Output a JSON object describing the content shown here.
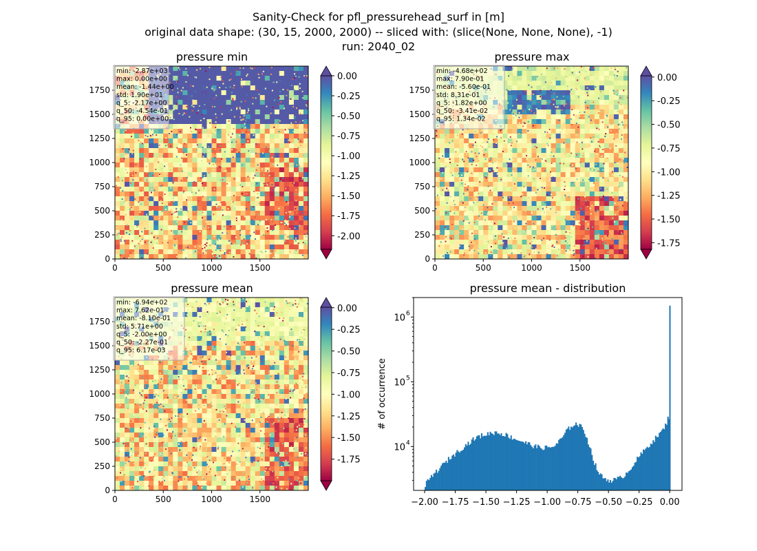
{
  "suptitle": {
    "line1": "Sanity-Check for pfl_pressurehead_surf in [m]",
    "line2": "original data shape: (30, 15, 2000, 2000) -- sliced with: (slice(None, None, None), -1)",
    "line3": "run: 2040_02"
  },
  "colormap": [
    "#9e0142",
    "#d53e4f",
    "#f46d43",
    "#fdae61",
    "#fee08b",
    "#ffffbf",
    "#e6f598",
    "#abdda4",
    "#66c2a5",
    "#3288bd",
    "#5e4fa2"
  ],
  "chart_data": [
    {
      "type": "heatmap",
      "title": "pressure min",
      "xticks": [
        0,
        500,
        1000,
        1500
      ],
      "yticks": [
        0,
        250,
        500,
        750,
        1000,
        1250,
        1500,
        1750
      ],
      "xlim": [
        0,
        2000
      ],
      "ylim": [
        0,
        2000
      ],
      "colorbar": {
        "ticks": [
          "0.00",
          "-0.25",
          "-0.50",
          "-0.75",
          "-1.00",
          "-1.25",
          "-1.50",
          "-1.75",
          "-2.00"
        ],
        "range": [
          -2.17,
          0.0
        ],
        "extend": "both"
      },
      "stats": [
        "min: -2.87e+03",
        "max: 0.00e+00",
        "mean: -1.44e+00",
        "std: 1.90e+01",
        "q_5: -2.17e+00",
        "q_50: -4.54e-01",
        "q_95: 0.00e+00"
      ]
    },
    {
      "type": "heatmap",
      "title": "pressure max",
      "xticks": [
        0,
        500,
        1000,
        1500
      ],
      "yticks": [
        0,
        250,
        500,
        750,
        1000,
        1250,
        1500,
        1750
      ],
      "xlim": [
        0,
        2000
      ],
      "ylim": [
        0,
        2000
      ],
      "colorbar": {
        "ticks": [
          "0.00",
          "-0.25",
          "-0.50",
          "-0.75",
          "-1.00",
          "-1.25",
          "-1.50",
          "-1.75"
        ],
        "range": [
          -1.82,
          0.0134
        ],
        "extend": "both"
      },
      "stats": [
        "min: -4.68e+02",
        "max: 7.90e-01",
        "mean: -5.60e-01",
        "std: 8.31e-01",
        "q_5: -1.82e+00",
        "q_50: -3.41e-02",
        "q_95: 1.34e-02"
      ]
    },
    {
      "type": "heatmap",
      "title": "pressure mean",
      "xticks": [
        0,
        500,
        1000,
        1500
      ],
      "yticks": [
        0,
        250,
        500,
        750,
        1000,
        1250,
        1500,
        1750
      ],
      "xlim": [
        0,
        2000
      ],
      "ylim": [
        0,
        2000
      ],
      "colorbar": {
        "ticks": [
          "0.00",
          "-0.25",
          "-0.50",
          "-0.75",
          "-1.00",
          "-1.25",
          "-1.50",
          "-1.75"
        ],
        "range": [
          -2.0,
          0.00617
        ],
        "extend": "both"
      },
      "stats": [
        "min: -6.94e+02",
        "max: 7.62e-01",
        "mean: -8.10e-01",
        "std: 5.71e+00",
        "q_5: -2.00e+00",
        "q_50: -2.27e-01",
        "q_95: 6.17e-03"
      ]
    },
    {
      "type": "bar",
      "title": "pressure mean - distribution",
      "ylabel": "# of occurrence",
      "xlabel": "",
      "xlim": [
        -2.09,
        0.1
      ],
      "ylim_log": [
        2100,
        2000000
      ],
      "yscale": "log",
      "color": "#1f77b4",
      "xticks": [
        "-2.00",
        "-1.75",
        "-1.50",
        "-1.25",
        "-1.00",
        "-0.75",
        "-0.50",
        "-0.25",
        "0.00"
      ],
      "yticks": [
        {
          "base": "10",
          "exp": "4",
          "value": 10000
        },
        {
          "base": "10",
          "exp": "5",
          "value": 100000
        },
        {
          "base": "10",
          "exp": "6",
          "value": 1000000
        }
      ],
      "bin_width": 0.01,
      "curve_points": [
        [
          -2.0,
          2500
        ],
        [
          -1.95,
          3300
        ],
        [
          -1.9,
          4200
        ],
        [
          -1.85,
          5200
        ],
        [
          -1.8,
          6500
        ],
        [
          -1.75,
          7800
        ],
        [
          -1.7,
          9300
        ],
        [
          -1.65,
          11000
        ],
        [
          -1.6,
          13000
        ],
        [
          -1.55,
          14500
        ],
        [
          -1.5,
          15500
        ],
        [
          -1.45,
          16200
        ],
        [
          -1.42,
          16600
        ],
        [
          -1.38,
          16000
        ],
        [
          -1.33,
          15000
        ],
        [
          -1.28,
          13500
        ],
        [
          -1.23,
          12500
        ],
        [
          -1.18,
          11500
        ],
        [
          -1.13,
          10500
        ],
        [
          -1.08,
          9800
        ],
        [
          -1.03,
          9600
        ],
        [
          -1.0,
          9600
        ],
        [
          -0.96,
          9800
        ],
        [
          -0.92,
          11000
        ],
        [
          -0.88,
          13500
        ],
        [
          -0.84,
          17500
        ],
        [
          -0.8,
          21000
        ],
        [
          -0.77,
          22500
        ],
        [
          -0.74,
          21500
        ],
        [
          -0.71,
          19000
        ],
        [
          -0.68,
          14500
        ],
        [
          -0.65,
          9500
        ],
        [
          -0.62,
          6000
        ],
        [
          -0.59,
          4300
        ],
        [
          -0.56,
          3500
        ],
        [
          -0.52,
          3100
        ],
        [
          -0.48,
          3000
        ],
        [
          -0.44,
          3100
        ],
        [
          -0.4,
          3300
        ],
        [
          -0.35,
          3900
        ],
        [
          -0.3,
          5200
        ],
        [
          -0.25,
          7000
        ],
        [
          -0.2,
          9000
        ],
        [
          -0.15,
          11500
        ],
        [
          -0.1,
          14500
        ],
        [
          -0.06,
          17500
        ],
        [
          -0.03,
          22000
        ],
        [
          -0.01,
          29000
        ]
      ],
      "spike": {
        "x": 0.0,
        "value": 1500000
      }
    }
  ]
}
